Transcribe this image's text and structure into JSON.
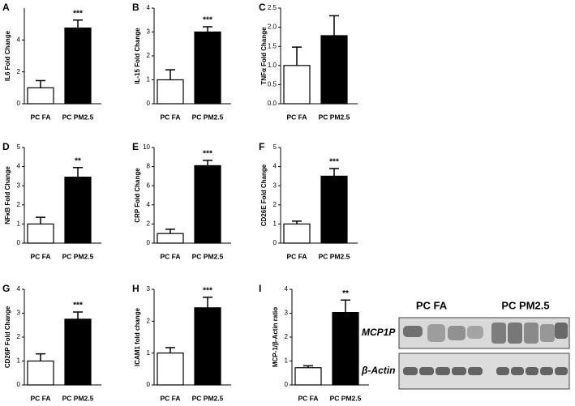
{
  "chart_data": [
    {
      "type": "bar",
      "panel": "A",
      "ylabel": "IL6 Fold Change",
      "categories": [
        "PC FA",
        "PC PM2.5"
      ],
      "values": [
        1.0,
        4.75
      ],
      "errors": [
        0.45,
        0.5
      ],
      "colors": [
        "#ffffff",
        "#000000"
      ],
      "annotation": "***",
      "ylim": [
        0,
        6
      ],
      "yticks": [
        0,
        2,
        4
      ]
    },
    {
      "type": "bar",
      "panel": "B",
      "ylabel": "IL-15 Fold Change",
      "categories": [
        "PC FA",
        "PC PM2.5"
      ],
      "values": [
        1.0,
        3.0
      ],
      "errors": [
        0.42,
        0.22
      ],
      "colors": [
        "#ffffff",
        "#000000"
      ],
      "annotation": "***",
      "ylim": [
        0,
        4
      ],
      "yticks": [
        0,
        1,
        2,
        3,
        4
      ]
    },
    {
      "type": "bar",
      "panel": "C",
      "ylabel": "TNFα Fold Change",
      "categories": [
        "PC FA",
        "PC PM2.5"
      ],
      "values": [
        1.0,
        1.78
      ],
      "errors": [
        0.48,
        0.52
      ],
      "colors": [
        "#ffffff",
        "#000000"
      ],
      "ylim": [
        0,
        2.5
      ],
      "yticks": [
        {
          "value": 0,
          "label": "0.0"
        },
        0.5,
        {
          "value": 1,
          "label": "1.0"
        },
        1.5,
        {
          "value": 2,
          "label": "2.0"
        },
        2.5
      ]
    },
    {
      "type": "bar",
      "panel": "D",
      "ylabel": "NFκB Fold Change",
      "categories": [
        "PC FA",
        "PC PM2.5"
      ],
      "values": [
        1.0,
        3.45
      ],
      "errors": [
        0.35,
        0.5
      ],
      "colors": [
        "#ffffff",
        "#000000"
      ],
      "annotation": "**",
      "ylim": [
        0,
        5
      ],
      "yticks": [
        0,
        1,
        2,
        3,
        4,
        5
      ]
    },
    {
      "type": "bar",
      "panel": "E",
      "ylabel": "CRP Fold Change",
      "categories": [
        "PC FA",
        "PC PM2.5"
      ],
      "values": [
        1.0,
        8.1
      ],
      "errors": [
        0.45,
        0.55
      ],
      "colors": [
        "#ffffff",
        "#000000"
      ],
      "annotation": "***",
      "ylim": [
        0,
        10
      ],
      "yticks": [
        0,
        2,
        4,
        6,
        8,
        10
      ]
    },
    {
      "type": "bar",
      "panel": "F",
      "ylabel": "CD26E Fold Change",
      "categories": [
        "PC FA",
        "PC PM2.5"
      ],
      "values": [
        1.0,
        3.5
      ],
      "errors": [
        0.15,
        0.4
      ],
      "colors": [
        "#ffffff",
        "#000000"
      ],
      "annotation": "***",
      "ylim": [
        0,
        5
      ],
      "yticks": [
        0,
        1,
        2,
        3,
        4,
        5
      ]
    },
    {
      "type": "bar",
      "panel": "G",
      "ylabel": "CD26P Fold Change",
      "categories": [
        "PC FA",
        "PC PM2.5"
      ],
      "values": [
        1.0,
        2.75
      ],
      "errors": [
        0.3,
        0.3
      ],
      "colors": [
        "#ffffff",
        "#000000"
      ],
      "annotation": "***",
      "ylim": [
        0,
        4
      ],
      "yticks": [
        0,
        1,
        2,
        3,
        4
      ]
    },
    {
      "type": "bar",
      "panel": "H",
      "ylabel": "ICAM1 fold change",
      "categories": [
        "PC FA",
        "PC PM2.5"
      ],
      "values": [
        1.0,
        2.42
      ],
      "errors": [
        0.17,
        0.33
      ],
      "colors": [
        "#ffffff",
        "#000000"
      ],
      "annotation": "***",
      "ylim": [
        0,
        3
      ],
      "yticks": [
        0,
        1,
        2,
        3
      ]
    },
    {
      "type": "bar",
      "panel": "I",
      "ylabel": "MCP-1/β-Actin ratio",
      "categories": [
        "PC FA",
        "PC PM2.5"
      ],
      "values": [
        0.72,
        3.03
      ],
      "errors": [
        0.08,
        0.52
      ],
      "colors": [
        "#ffffff",
        "#000000"
      ],
      "annotation": "**",
      "ylim": [
        0,
        4
      ],
      "yticks": [
        0,
        1,
        2,
        3,
        4
      ]
    }
  ],
  "blot": {
    "groups": [
      "PC FA",
      "PC PM2.5"
    ],
    "rows": [
      "MCP1P",
      "β-Actin"
    ]
  }
}
